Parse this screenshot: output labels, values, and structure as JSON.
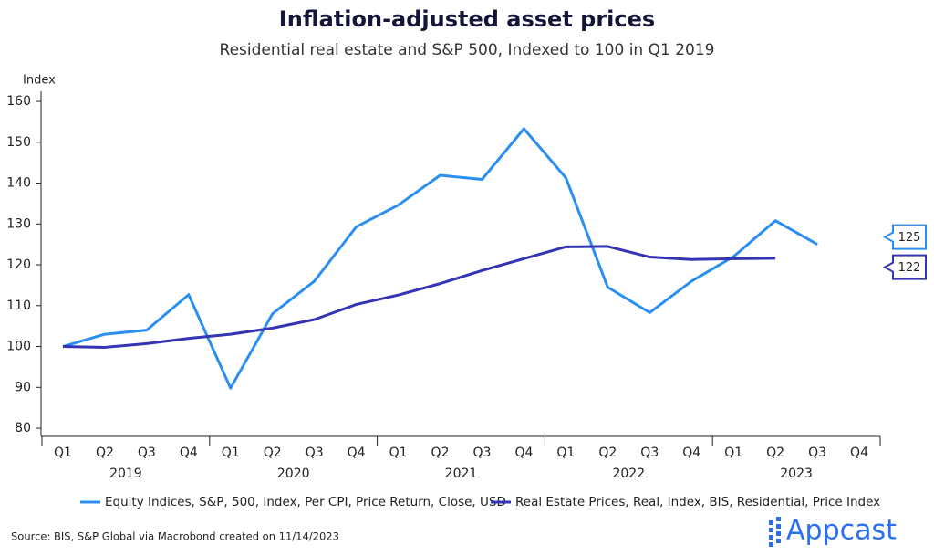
{
  "chart_data": {
    "type": "line",
    "title": "Inflation-adjusted asset prices",
    "subtitle": "Residential real estate and S&P 500, Indexed to 100 in Q1 2019",
    "y_axis_label": "Index",
    "categories": [
      "Q1",
      "Q2",
      "Q3",
      "Q4",
      "Q1",
      "Q2",
      "Q3",
      "Q4",
      "Q1",
      "Q2",
      "Q3",
      "Q4",
      "Q1",
      "Q2",
      "Q3",
      "Q4",
      "Q1",
      "Q2",
      "Q3",
      "Q4"
    ],
    "category_groups": [
      "2019",
      "2020",
      "2021",
      "2022",
      "2023"
    ],
    "series": [
      {
        "name": "Equity Indices, S&P, 500, Index, Per CPI, Price Return, Close, USD",
        "color": "#2b8ff0",
        "values": [
          100,
          103,
          104,
          112.7,
          89.8,
          108,
          116,
          129.3,
          134.6,
          141.9,
          140.9,
          153.3,
          141.3,
          114.5,
          108.3,
          116,
          122,
          130.8,
          125,
          null
        ]
      },
      {
        "name": "Real Estate Prices, Real, Index, BIS, Residential, Price Index",
        "color": "#3434b4",
        "values": [
          100,
          99.8,
          100.7,
          102,
          103,
          104.5,
          106.6,
          110.3,
          112.6,
          115.4,
          118.6,
          121.5,
          124.4,
          124.5,
          121.9,
          121.3,
          121.5,
          121.6,
          null,
          null
        ],
        "value_labels": [
          null,
          null,
          null,
          null,
          null,
          null,
          null,
          null,
          null,
          null,
          null,
          null,
          null,
          null,
          null,
          null,
          null,
          "122",
          null,
          null
        ]
      }
    ],
    "ylim": [
      78,
      163
    ],
    "yticks": [
      80,
      90,
      100,
      110,
      120,
      130,
      140,
      150,
      160
    ],
    "source": "Source: BIS, S&P Global via Macrobond created on 11/14/2023",
    "logo": "Appcast"
  }
}
